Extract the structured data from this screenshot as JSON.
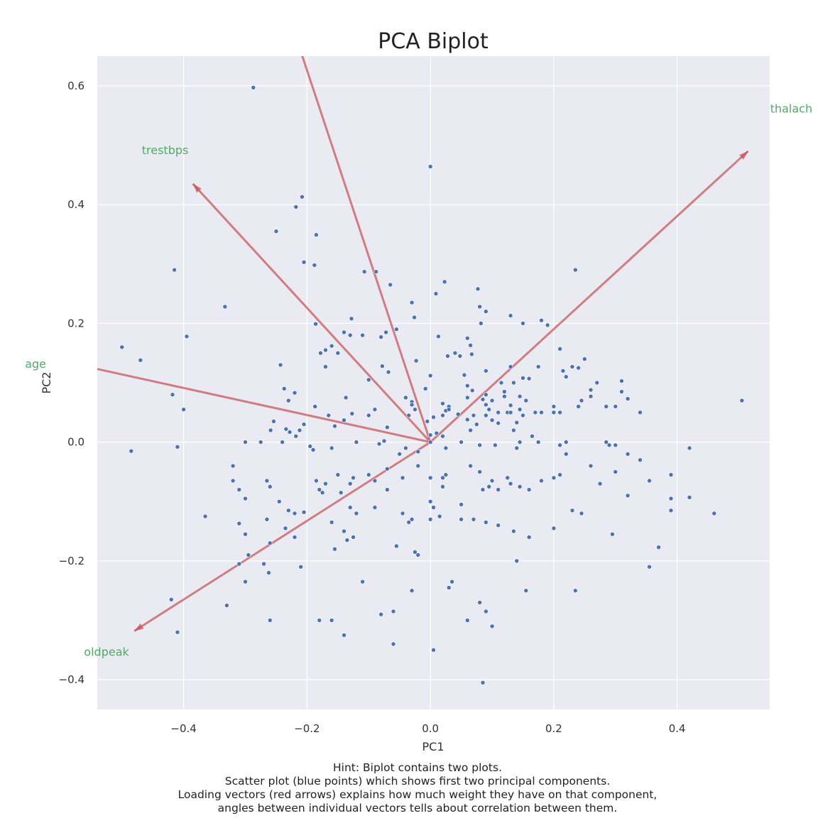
{
  "chart_data": {
    "type": "scatter",
    "title": "PCA Biplot",
    "xlabel": "PC1",
    "ylabel": "PC2",
    "xlim": [
      -0.54,
      0.55
    ],
    "ylim": [
      -0.45,
      0.65
    ],
    "xticks": [
      -0.4,
      -0.2,
      0.0,
      0.2,
      0.4
    ],
    "xtick_labels": [
      "−0.4",
      "−0.2",
      "0.0",
      "0.2",
      "0.4"
    ],
    "yticks": [
      0.6,
      0.4,
      0.2,
      0.0,
      -0.2,
      -0.4
    ],
    "ytick_labels": [
      "0.6",
      "0.4",
      "0.2",
      "0.0",
      "−0.2",
      "−0.4"
    ],
    "grid": true,
    "background": "#eaeaf2",
    "point_color": "#4c72b0",
    "vector_color": "#c44e52",
    "label_color": "#55a868",
    "points": [
      [
        -0.287,
        0.597
      ],
      [
        0.0,
        0.464
      ],
      [
        -0.208,
        0.413
      ],
      [
        -0.218,
        0.396
      ],
      [
        -0.25,
        0.355
      ],
      [
        -0.185,
        0.349
      ],
      [
        -0.205,
        0.303
      ],
      [
        -0.188,
        0.298
      ],
      [
        -0.415,
        0.29
      ],
      [
        -0.107,
        0.287
      ],
      [
        -0.088,
        0.287
      ],
      [
        0.235,
        0.29
      ],
      [
        0.023,
        0.27
      ],
      [
        0.009,
        0.25
      ],
      [
        -0.065,
        0.265
      ],
      [
        0.077,
        0.258
      ],
      [
        -0.333,
        0.228
      ],
      [
        -0.03,
        0.235
      ],
      [
        0.08,
        0.228
      ],
      [
        0.09,
        0.22
      ],
      [
        -0.026,
        0.21
      ],
      [
        0.13,
        0.213
      ],
      [
        0.15,
        0.2
      ],
      [
        0.18,
        0.205
      ],
      [
        0.19,
        0.197
      ],
      [
        -0.186,
        0.199
      ],
      [
        -0.128,
        0.208
      ],
      [
        -0.395,
        0.178
      ],
      [
        -0.5,
        0.16
      ],
      [
        -0.47,
        0.138
      ],
      [
        -0.14,
        0.185
      ],
      [
        -0.13,
        0.18
      ],
      [
        -0.11,
        0.18
      ],
      [
        -0.08,
        0.177
      ],
      [
        -0.072,
        0.185
      ],
      [
        -0.055,
        0.19
      ],
      [
        0.013,
        0.178
      ],
      [
        0.06,
        0.175
      ],
      [
        0.065,
        0.163
      ],
      [
        0.082,
        0.2
      ],
      [
        -0.17,
        0.155
      ],
      [
        -0.16,
        0.162
      ],
      [
        -0.15,
        0.15
      ],
      [
        -0.178,
        0.15
      ],
      [
        -0.17,
        0.127
      ],
      [
        -0.243,
        0.13
      ],
      [
        -0.023,
        0.137
      ],
      [
        0.04,
        0.15
      ],
      [
        0.048,
        0.145
      ],
      [
        0.028,
        0.145
      ],
      [
        0.067,
        0.148
      ],
      [
        0.21,
        0.157
      ],
      [
        0.25,
        0.14
      ],
      [
        0.215,
        0.12
      ],
      [
        0.22,
        0.11
      ],
      [
        0.23,
        0.127
      ],
      [
        0.24,
        0.125
      ],
      [
        0.13,
        0.127
      ],
      [
        0.115,
        0.1
      ],
      [
        0.12,
        0.085
      ],
      [
        0.135,
        0.1
      ],
      [
        0.15,
        0.108
      ],
      [
        0.16,
        0.107
      ],
      [
        0.175,
        0.127
      ],
      [
        -0.078,
        0.128
      ],
      [
        -0.068,
        0.118
      ],
      [
        0.0,
        0.112
      ],
      [
        0.055,
        0.113
      ],
      [
        0.09,
        0.12
      ],
      [
        0.27,
        0.1
      ],
      [
        0.26,
        0.088
      ],
      [
        0.26,
        0.077
      ],
      [
        0.31,
        0.103
      ],
      [
        0.31,
        0.085
      ],
      [
        0.32,
        0.073
      ],
      [
        -0.418,
        0.08
      ],
      [
        -0.237,
        0.09
      ],
      [
        -0.23,
        0.07
      ],
      [
        -0.22,
        0.083
      ],
      [
        -0.4,
        0.055
      ],
      [
        -0.137,
        0.075
      ],
      [
        -0.127,
        0.048
      ],
      [
        -0.1,
        0.105
      ],
      [
        -0.09,
        0.055
      ],
      [
        -0.04,
        0.075
      ],
      [
        -0.03,
        0.068
      ],
      [
        -0.008,
        0.09
      ],
      [
        0.06,
        0.075
      ],
      [
        0.06,
        0.095
      ],
      [
        0.068,
        0.087
      ],
      [
        0.085,
        0.072
      ],
      [
        0.09,
        0.08
      ],
      [
        0.12,
        0.077
      ],
      [
        0.1,
        0.07
      ],
      [
        0.13,
        0.062
      ],
      [
        0.145,
        0.055
      ],
      [
        0.145,
        0.077
      ],
      [
        0.155,
        0.07
      ],
      [
        0.11,
        0.032
      ],
      [
        0.125,
        0.05
      ],
      [
        0.14,
        0.033
      ],
      [
        0.135,
        0.02
      ],
      [
        0.145,
        0.0
      ],
      [
        -0.254,
        0.035
      ],
      [
        -0.259,
        0.02
      ],
      [
        -0.234,
        0.022
      ],
      [
        -0.228,
        0.017
      ],
      [
        -0.212,
        0.02
      ],
      [
        -0.205,
        0.03
      ],
      [
        -0.187,
        0.06
      ],
      [
        -0.165,
        0.045
      ],
      [
        -0.155,
        0.027
      ],
      [
        -0.14,
        0.037
      ],
      [
        -0.1,
        0.045
      ],
      [
        -0.07,
        0.025
      ],
      [
        -0.035,
        0.045
      ],
      [
        -0.03,
        0.063
      ],
      [
        -0.025,
        0.055
      ],
      [
        -0.005,
        0.035
      ],
      [
        0.005,
        0.042
      ],
      [
        0.02,
        0.065
      ],
      [
        0.03,
        0.06
      ],
      [
        0.02,
        0.045
      ],
      [
        0.025,
        0.053
      ],
      [
        0.03,
        0.055
      ],
      [
        0.045,
        0.047
      ],
      [
        0.06,
        0.038
      ],
      [
        0.07,
        0.045
      ],
      [
        0.09,
        0.063
      ],
      [
        0.095,
        0.055
      ],
      [
        0.075,
        0.03
      ],
      [
        0.065,
        0.02
      ],
      [
        0.09,
        0.045
      ],
      [
        0.1,
        0.037
      ],
      [
        0.11,
        0.05
      ],
      [
        0.13,
        0.05
      ],
      [
        0.15,
        0.045
      ],
      [
        0.17,
        0.05
      ],
      [
        0.18,
        0.05
      ],
      [
        0.2,
        0.05
      ],
      [
        0.21,
        0.05
      ],
      [
        0.2,
        0.06
      ],
      [
        0.24,
        0.06
      ],
      [
        0.245,
        0.07
      ],
      [
        0.285,
        0.06
      ],
      [
        0.3,
        0.06
      ],
      [
        0.34,
        0.05
      ],
      [
        0.505,
        0.07
      ],
      [
        -0.3,
        0.0
      ],
      [
        -0.275,
        0.0
      ],
      [
        -0.24,
        0.0
      ],
      [
        -0.218,
        0.01
      ],
      [
        -0.205,
        0.03
      ],
      [
        -0.195,
        -0.007
      ],
      [
        -0.19,
        -0.013
      ],
      [
        -0.16,
        -0.01
      ],
      [
        -0.12,
        0.0
      ],
      [
        -0.083,
        -0.003
      ],
      [
        -0.075,
        0.002
      ],
      [
        -0.05,
        -0.02
      ],
      [
        -0.04,
        -0.01
      ],
      [
        -0.02,
        -0.016
      ],
      [
        0.0,
        0.0
      ],
      [
        0.01,
        0.015
      ],
      [
        0.0,
        0.012
      ],
      [
        0.02,
        0.01
      ],
      [
        0.025,
        -0.01
      ],
      [
        0.05,
        0.0
      ],
      [
        0.08,
        -0.005
      ],
      [
        0.105,
        -0.005
      ],
      [
        0.14,
        -0.01
      ],
      [
        0.165,
        0.01
      ],
      [
        0.175,
        0.0
      ],
      [
        0.21,
        -0.005
      ],
      [
        0.22,
        -0.02
      ],
      [
        0.22,
        0.0
      ],
      [
        0.285,
        0.0
      ],
      [
        0.29,
        -0.005
      ],
      [
        0.3,
        -0.005
      ],
      [
        0.32,
        -0.02
      ],
      [
        0.34,
        -0.03
      ],
      [
        0.42,
        -0.01
      ],
      [
        -0.485,
        -0.015
      ],
      [
        -0.41,
        -0.008
      ],
      [
        -0.32,
        -0.04
      ],
      [
        -0.32,
        -0.065
      ],
      [
        -0.31,
        -0.08
      ],
      [
        -0.3,
        -0.095
      ],
      [
        -0.265,
        -0.065
      ],
      [
        -0.26,
        -0.075
      ],
      [
        -0.245,
        -0.1
      ],
      [
        -0.23,
        -0.115
      ],
      [
        -0.22,
        -0.12
      ],
      [
        -0.205,
        -0.118
      ],
      [
        -0.185,
        -0.065
      ],
      [
        -0.18,
        -0.08
      ],
      [
        -0.175,
        -0.085
      ],
      [
        -0.17,
        -0.07
      ],
      [
        -0.15,
        -0.055
      ],
      [
        -0.145,
        -0.085
      ],
      [
        -0.13,
        -0.07
      ],
      [
        -0.125,
        -0.06
      ],
      [
        -0.1,
        -0.055
      ],
      [
        -0.09,
        -0.065
      ],
      [
        -0.07,
        -0.045
      ],
      [
        -0.07,
        -0.08
      ],
      [
        -0.045,
        -0.06
      ],
      [
        -0.02,
        -0.04
      ],
      [
        0.0,
        -0.06
      ],
      [
        0.02,
        -0.06
      ],
      [
        0.02,
        -0.075
      ],
      [
        0.025,
        -0.055
      ],
      [
        0.0,
        -0.1
      ],
      [
        0.005,
        -0.11
      ],
      [
        0.05,
        -0.105
      ],
      [
        0.065,
        -0.04
      ],
      [
        0.08,
        -0.05
      ],
      [
        0.085,
        -0.08
      ],
      [
        0.1,
        -0.065
      ],
      [
        0.095,
        -0.075
      ],
      [
        0.11,
        -0.08
      ],
      [
        0.125,
        -0.06
      ],
      [
        0.13,
        -0.07
      ],
      [
        0.145,
        -0.075
      ],
      [
        0.16,
        -0.08
      ],
      [
        0.18,
        -0.065
      ],
      [
        0.2,
        -0.06
      ],
      [
        0.21,
        -0.055
      ],
      [
        0.26,
        -0.04
      ],
      [
        0.275,
        -0.07
      ],
      [
        0.3,
        -0.05
      ],
      [
        0.32,
        -0.09
      ],
      [
        0.355,
        -0.065
      ],
      [
        0.39,
        -0.055
      ],
      [
        0.39,
        -0.095
      ],
      [
        0.42,
        -0.093
      ],
      [
        -0.365,
        -0.125
      ],
      [
        -0.31,
        -0.137
      ],
      [
        -0.3,
        -0.155
      ],
      [
        -0.265,
        -0.13
      ],
      [
        -0.26,
        -0.17
      ],
      [
        -0.235,
        -0.145
      ],
      [
        -0.22,
        -0.16
      ],
      [
        -0.16,
        -0.135
      ],
      [
        -0.14,
        -0.15
      ],
      [
        -0.135,
        -0.165
      ],
      [
        -0.125,
        -0.16
      ],
      [
        -0.155,
        -0.18
      ],
      [
        -0.13,
        -0.11
      ],
      [
        -0.12,
        -0.12
      ],
      [
        -0.09,
        -0.11
      ],
      [
        -0.045,
        -0.12
      ],
      [
        -0.035,
        -0.135
      ],
      [
        -0.03,
        -0.13
      ],
      [
        0.0,
        -0.13
      ],
      [
        0.015,
        -0.125
      ],
      [
        0.05,
        -0.13
      ],
      [
        0.07,
        -0.13
      ],
      [
        0.09,
        -0.135
      ],
      [
        0.11,
        -0.14
      ],
      [
        0.135,
        -0.15
      ],
      [
        0.16,
        -0.16
      ],
      [
        0.2,
        -0.145
      ],
      [
        0.23,
        -0.115
      ],
      [
        0.245,
        -0.12
      ],
      [
        0.295,
        -0.155
      ],
      [
        0.37,
        -0.177
      ],
      [
        0.39,
        -0.115
      ],
      [
        0.46,
        -0.12
      ],
      [
        -0.31,
        -0.205
      ],
      [
        -0.295,
        -0.19
      ],
      [
        -0.3,
        -0.235
      ],
      [
        -0.27,
        -0.205
      ],
      [
        -0.262,
        -0.22
      ],
      [
        -0.21,
        -0.21
      ],
      [
        -0.18,
        -0.3
      ],
      [
        -0.16,
        -0.3
      ],
      [
        -0.11,
        -0.235
      ],
      [
        -0.08,
        -0.29
      ],
      [
        -0.06,
        -0.285
      ],
      [
        -0.055,
        -0.175
      ],
      [
        -0.025,
        -0.185
      ],
      [
        -0.02,
        -0.19
      ],
      [
        -0.03,
        -0.25
      ],
      [
        0.03,
        -0.245
      ],
      [
        0.035,
        -0.235
      ],
      [
        0.08,
        -0.27
      ],
      [
        0.09,
        -0.285
      ],
      [
        0.1,
        -0.31
      ],
      [
        0.14,
        -0.2
      ],
      [
        0.155,
        -0.25
      ],
      [
        0.235,
        -0.25
      ],
      [
        0.355,
        -0.21
      ],
      [
        -0.42,
        -0.265
      ],
      [
        -0.41,
        -0.32
      ],
      [
        -0.33,
        -0.275
      ],
      [
        -0.14,
        -0.325
      ],
      [
        -0.06,
        -0.34
      ],
      [
        0.005,
        -0.35
      ],
      [
        0.085,
        -0.405
      ],
      [
        0.06,
        -0.3
      ],
      [
        -0.26,
        -0.3
      ]
    ],
    "vectors": [
      {
        "name": "thalach",
        "x": 0.515,
        "y": 0.49,
        "label_x": 0.585,
        "label_y": 0.555
      },
      {
        "name": "trestbps",
        "x": -0.385,
        "y": 0.435,
        "label_x": -0.43,
        "label_y": 0.485
      },
      {
        "name": "age",
        "x": -0.57,
        "y": 0.13,
        "label_x": -0.64,
        "label_y": 0.125
      },
      {
        "name": "oldpeak",
        "x": -0.48,
        "y": -0.318,
        "label_x": -0.525,
        "label_y": -0.36
      },
      {
        "name": "",
        "x": -0.23,
        "y": 0.72
      }
    ],
    "hint": [
      "Hint: Biplot contains two plots.",
      "Scatter plot (blue points) which shows first two principal components.",
      "Loading vectors (red arrows) explains how much weight they have on that component,",
      "angles between individual vectors tells about correlation between them."
    ]
  }
}
